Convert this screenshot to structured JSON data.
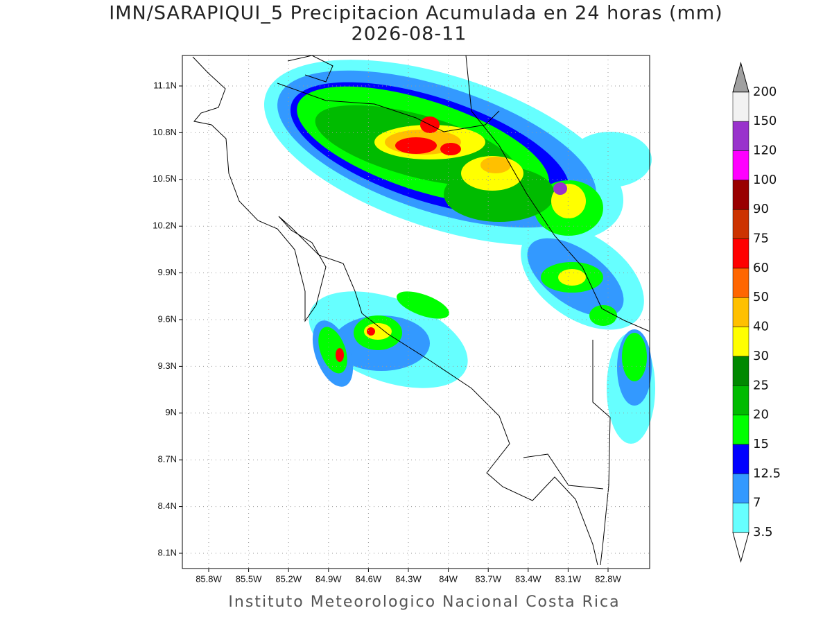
{
  "title": "IMN/SARAPIQUI_5 Precipitacion Acumulada en 24 horas (mm)",
  "subtitle": "2026-08-11",
  "footer": "Instituto Meteorologico Nacional Costa Rica",
  "lat_labels": [
    "11.1N",
    "10.8N",
    "10.5N",
    "10.2N",
    "9.9N",
    "9.6N",
    "9.3N",
    "9N",
    "8.7N",
    "8.4N",
    "8.1N"
  ],
  "lon_labels": [
    "85.8W",
    "85.5W",
    "85.2W",
    "84.9W",
    "84.6W",
    "84.3W",
    "84W",
    "83.7W",
    "83.4W",
    "83.1W",
    "82.8W"
  ],
  "colorbar": {
    "levels": [
      3.5,
      7,
      12.5,
      15,
      20,
      25,
      30,
      40,
      50,
      60,
      75,
      90,
      100,
      120,
      150,
      200
    ],
    "colors": [
      "#ffffff",
      "#66ffff",
      "#3399ff",
      "#0000ff",
      "#00ff00",
      "#00bb00",
      "#008800",
      "#ffff00",
      "#ffc000",
      "#ff6600",
      "#ff0000",
      "#cc3300",
      "#990000",
      "#ff00ff",
      "#9933cc",
      "#f2f2f2",
      "#a0a0a0"
    ]
  }
}
